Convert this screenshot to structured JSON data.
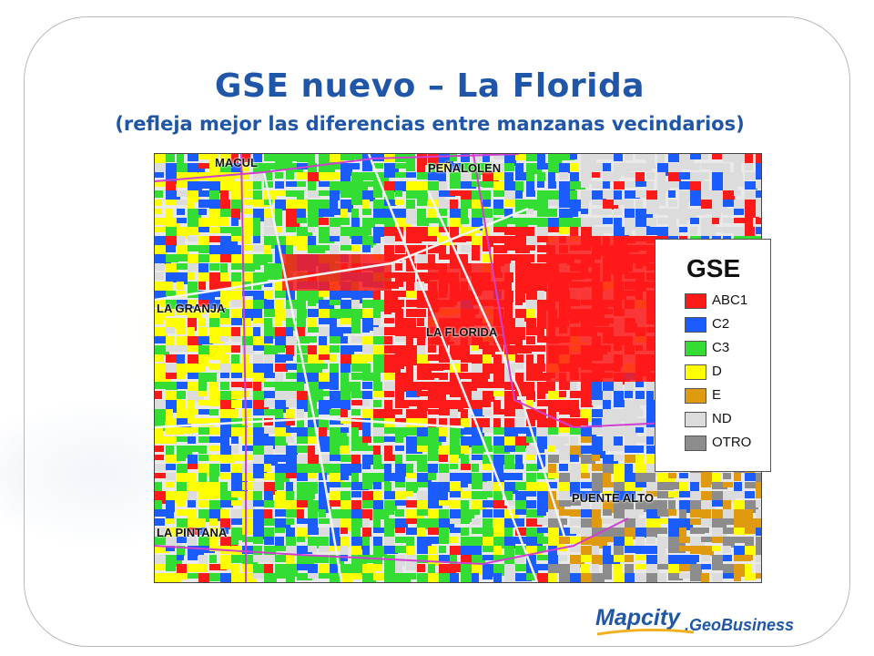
{
  "slide": {
    "title": "GSE nuevo – La Florida",
    "subtitle": "(refleja mejor las diferencias entre manzanas vecindarios)"
  },
  "map": {
    "places": [
      "MACUL",
      "PEÑALOLEN",
      "LA GRANJA",
      "LA FLORIDA",
      "PUENTE ALTO",
      "LA PINTANA"
    ],
    "legend": {
      "title": "GSE",
      "items": [
        {
          "label": "ABC1",
          "color": "#ff1a1a"
        },
        {
          "label": "C2",
          "color": "#1a5cff"
        },
        {
          "label": "C3",
          "color": "#33dd33"
        },
        {
          "label": "D",
          "color": "#ffff00"
        },
        {
          "label": "E",
          "color": "#e09a10"
        },
        {
          "label": "ND",
          "color": "#dcdcdc"
        },
        {
          "label": "OTRO",
          "color": "#8c8c8c"
        }
      ]
    }
  },
  "logo": {
    "main": "Mapcity",
    "sub": ".GeoBusiness"
  }
}
